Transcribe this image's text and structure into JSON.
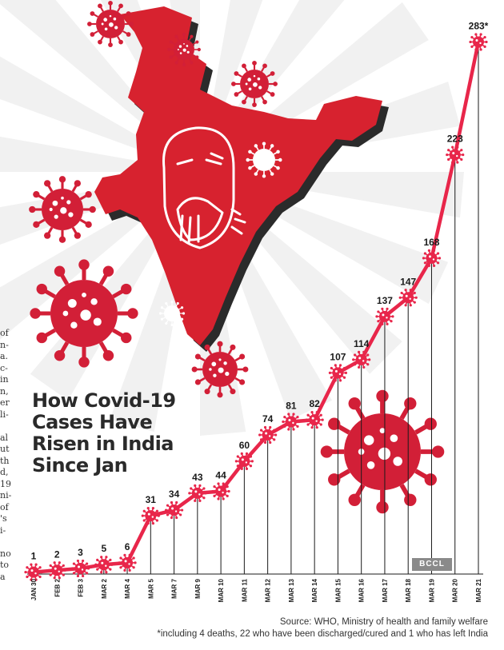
{
  "title_lines": [
    "How Covid-19",
    "Cases Have",
    "Risen in India",
    "Since Jan"
  ],
  "source": {
    "line1": "Source: WHO, Ministry of health and family welfare",
    "line2": "*including 4 deaths, 22 who have been discharged/cured and 1 who has left India"
  },
  "watermark": "BCCL",
  "colors": {
    "line": "#e8264a",
    "virus": "#d21f37",
    "map": "#d7222f",
    "map_shadow": "#2b2b2b",
    "ray": "#f1f1f1"
  },
  "chart_data": {
    "type": "line",
    "title": "How Covid-19 Cases Have Risen in India Since Jan",
    "categories": [
      "JAN 30",
      "FEB 2",
      "FEB 3",
      "MAR 2",
      "MAR 4",
      "MAR 5",
      "MAR 7",
      "MAR 9",
      "MAR 10",
      "MAR 11",
      "MAR 12",
      "MAR 13",
      "MAR 14",
      "MAR 15",
      "MAR 16",
      "MAR 17",
      "MAR 18",
      "MAR 19",
      "MAR 20",
      "MAR 21"
    ],
    "values": [
      1,
      2,
      3,
      5,
      6,
      31,
      34,
      43,
      44,
      60,
      74,
      81,
      82,
      107,
      114,
      137,
      147,
      168,
      223,
      283
    ],
    "value_labels": [
      "1",
      "2",
      "3",
      "5",
      "6",
      "31",
      "34",
      "43",
      "44",
      "60",
      "74",
      "81",
      "82",
      "107",
      "114",
      "137",
      "147",
      "168",
      "223",
      "283*"
    ],
    "ylim": [
      0,
      290
    ],
    "grid": false,
    "legend": "none"
  }
}
